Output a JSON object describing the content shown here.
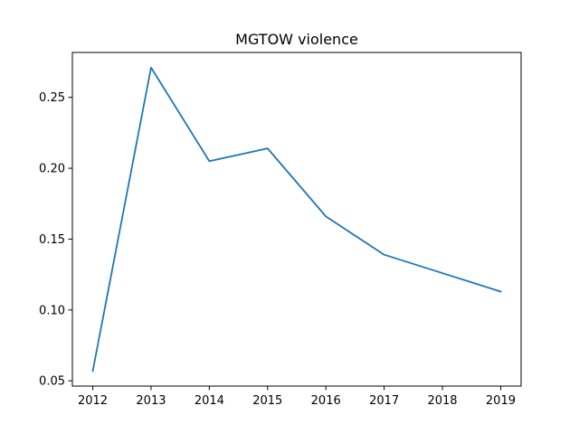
{
  "chart_data": {
    "type": "line",
    "title": "MGTOW violence",
    "xlabel": "",
    "ylabel": "",
    "x": [
      2012,
      2013,
      2014,
      2015,
      2016,
      2017,
      2018,
      2019
    ],
    "series": [
      {
        "values": [
          0.057,
          0.271,
          0.205,
          0.214,
          0.166,
          0.139,
          0.126,
          0.113
        ]
      }
    ],
    "xticks": [
      "2012",
      "2013",
      "2014",
      "2015",
      "2016",
      "2017",
      "2018",
      "2019"
    ],
    "yticks": [
      "0.05",
      "0.10",
      "0.15",
      "0.20",
      "0.25"
    ],
    "xlim": [
      2011.65,
      2019.35
    ],
    "ylim": [
      0.0463,
      0.2817
    ],
    "grid": false,
    "colors": {
      "line": "#1f77b4",
      "axes": "#000000"
    }
  }
}
